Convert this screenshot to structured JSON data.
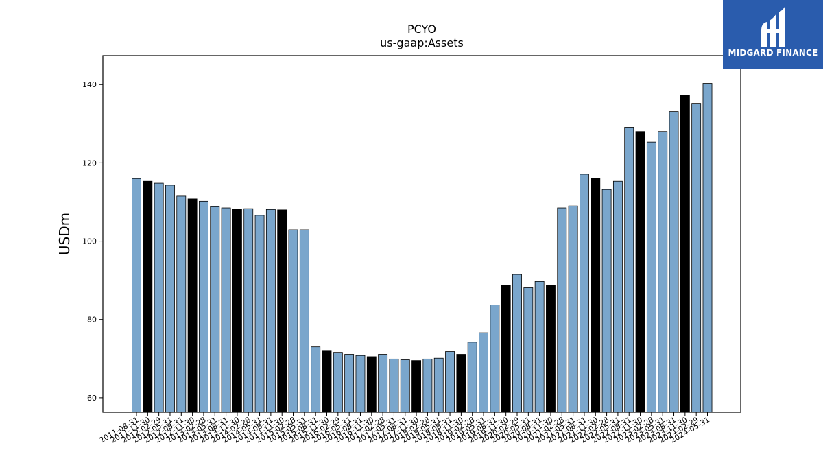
{
  "logo": {
    "text": "MIDGARD FINANCE"
  },
  "chart_data": {
    "type": "bar",
    "title": "PCYO",
    "subtitle": "us-gaap:Assets",
    "xlabel": "",
    "ylabel": "USDm",
    "ylim": [
      56.3,
      147.4
    ],
    "yticks": [
      60,
      80,
      100,
      120,
      140
    ],
    "grid": false,
    "colors": {
      "default": "#7aa6cc",
      "highlight": "#000000",
      "edge": "#000000"
    },
    "categories": [
      "2011-08-31",
      "2011-11-30",
      "2012-02-29",
      "2012-05-31",
      "2012-08-31",
      "2012-11-30",
      "2013-02-28",
      "2013-05-31",
      "2013-08-31",
      "2013-11-30",
      "2014-02-28",
      "2014-05-31",
      "2014-08-31",
      "2014-11-30",
      "2015-02-28",
      "2015-05-31",
      "2015-08-31",
      "2015-11-30",
      "2016-02-29",
      "2016-05-31",
      "2016-08-31",
      "2016-11-30",
      "2017-02-28",
      "2017-05-31",
      "2017-08-31",
      "2017-11-30",
      "2018-02-28",
      "2018-05-31",
      "2018-08-31",
      "2018-11-30",
      "2019-02-28",
      "2019-05-31",
      "2019-08-31",
      "2019-11-30",
      "2020-02-29",
      "2020-05-31",
      "2020-08-31",
      "2020-11-30",
      "2021-02-28",
      "2021-05-31",
      "2021-08-31",
      "2021-11-30",
      "2022-02-28",
      "2022-05-31",
      "2022-08-31",
      "2022-11-30",
      "2023-02-28",
      "2023-05-31",
      "2023-08-31",
      "2023-11-30",
      "2024-02-29",
      "2024-05-31"
    ],
    "values": [
      116.0,
      115.3,
      114.8,
      114.3,
      111.5,
      110.8,
      110.2,
      108.8,
      108.5,
      108.1,
      108.3,
      106.6,
      108.1,
      108.0,
      102.9,
      102.9,
      73.0,
      72.1,
      71.6,
      71.1,
      70.8,
      70.5,
      71.1,
      69.9,
      69.7,
      69.5,
      69.9,
      70.1,
      71.8,
      71.1,
      74.2,
      76.6,
      83.7,
      88.8,
      91.5,
      88.1,
      89.7,
      88.8,
      108.5,
      109.0,
      117.1,
      116.1,
      113.2,
      115.3,
      129.1,
      128.0,
      125.3,
      128.0,
      133.1,
      137.3,
      135.2,
      140.3
    ],
    "highlighted": [
      false,
      true,
      false,
      false,
      false,
      true,
      false,
      false,
      false,
      true,
      false,
      false,
      false,
      true,
      false,
      false,
      false,
      true,
      false,
      false,
      false,
      true,
      false,
      false,
      false,
      true,
      false,
      false,
      false,
      true,
      false,
      false,
      false,
      true,
      false,
      false,
      false,
      true,
      false,
      false,
      false,
      true,
      false,
      false,
      false,
      true,
      false,
      false,
      false,
      true,
      false,
      false
    ]
  }
}
